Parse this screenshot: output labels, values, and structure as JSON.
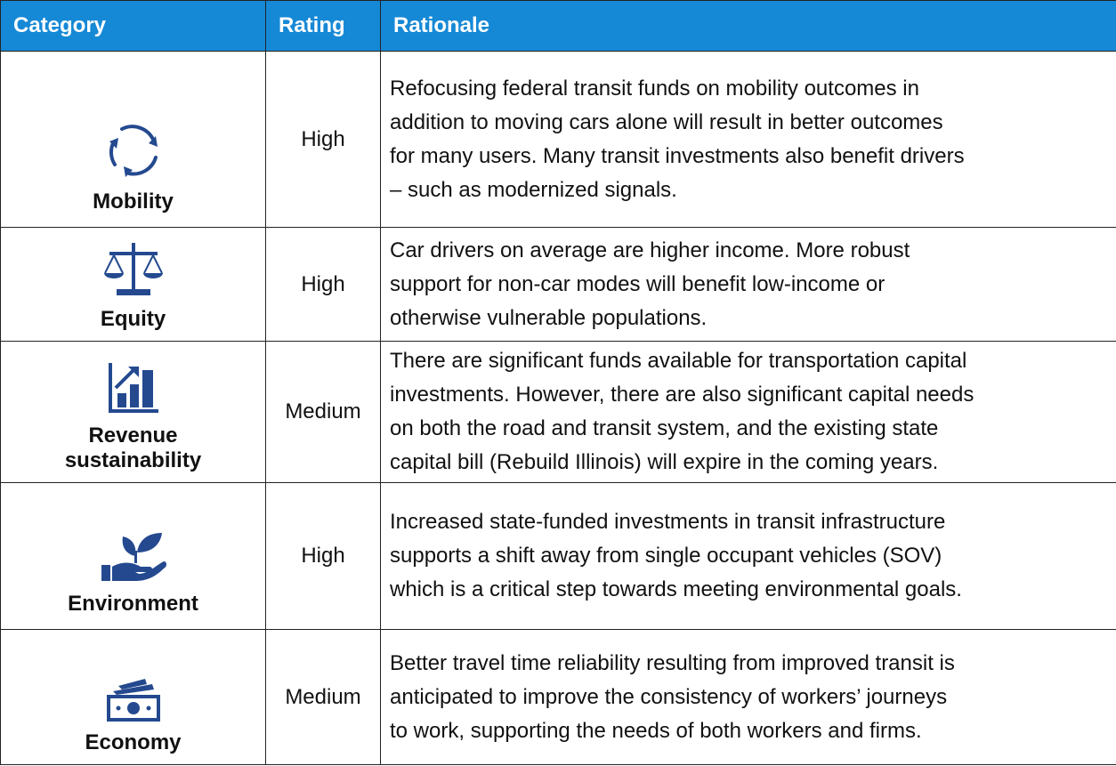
{
  "table": {
    "header": [
      "Category",
      "Rating",
      "Rationale"
    ],
    "rows": [
      {
        "category": [
          "Mobility"
        ],
        "rating": "High",
        "rationale": [
          "Refocusing federal transit funds on mobility outcomes in",
          "addition to moving cars alone will result in better outcomes",
          "for many users. Many transit investments also benefit drivers",
          "– such as modernized signals."
        ]
      },
      {
        "category": [
          "Equity"
        ],
        "rating": "High",
        "rationale": [
          "Car drivers on average are higher income. More robust",
          "support for non-car modes will benefit low-income or",
          "otherwise vulnerable populations."
        ]
      },
      {
        "category": [
          "Revenue",
          "sustainability"
        ],
        "rating": "Medium",
        "rationale": [
          "There are significant funds available for transportation capital",
          "investments. However, there are also significant capital needs",
          "on both the road and transit system, and the existing state",
          "capital bill (Rebuild Illinois) will expire in the coming years."
        ]
      },
      {
        "category": [
          "Environment"
        ],
        "rating": "High",
        "rationale": [
          "Increased state-funded investments in transit infrastructure",
          "supports a shift away from single occupant vehicles (SOV)",
          "which is a critical step towards meeting environmental goals."
        ]
      },
      {
        "category": [
          "Economy"
        ],
        "rating": "Medium",
        "rationale": [
          "Better travel time reliability resulting from improved transit is",
          "anticipated to improve the consistency of workers’ journeys",
          "to work, supporting the needs of both workers and firms."
        ]
      }
    ]
  }
}
